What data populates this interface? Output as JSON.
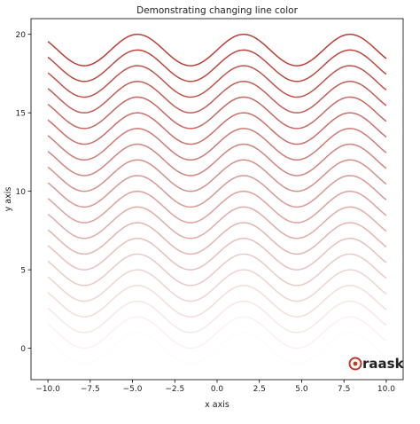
{
  "chart_data": {
    "type": "line",
    "title": "Demonstrating changing line color",
    "xlabel": "x axis",
    "ylabel": "y axis",
    "xlim": [
      -11,
      11
    ],
    "ylim": [
      -2,
      21
    ],
    "x_range": [
      -10,
      10
    ],
    "x_ticks": [
      -10.0,
      -7.5,
      -5.0,
      -2.5,
      0.0,
      2.5,
      5.0,
      7.5,
      10.0
    ],
    "x_tick_labels": [
      "−10.0",
      "−7.5",
      "−5.0",
      "−2.5",
      "0.0",
      "2.5",
      "5.0",
      "7.5",
      "10.0"
    ],
    "y_ticks": [
      0,
      5,
      10,
      15,
      20
    ],
    "y_tick_labels": [
      "0",
      "5",
      "10",
      "15",
      "20"
    ],
    "grid": false,
    "series_function": "y = sin(x) + offset",
    "offsets": [
      0,
      1,
      2,
      3,
      4,
      5,
      6,
      7,
      8,
      9,
      10,
      11,
      12,
      13,
      14,
      15,
      16,
      17,
      18,
      19
    ],
    "color": "#b5352a",
    "color_alpha_range": [
      0.02,
      0.95
    ]
  },
  "watermark": {
    "text": "raask",
    "color": "#c0392b"
  }
}
